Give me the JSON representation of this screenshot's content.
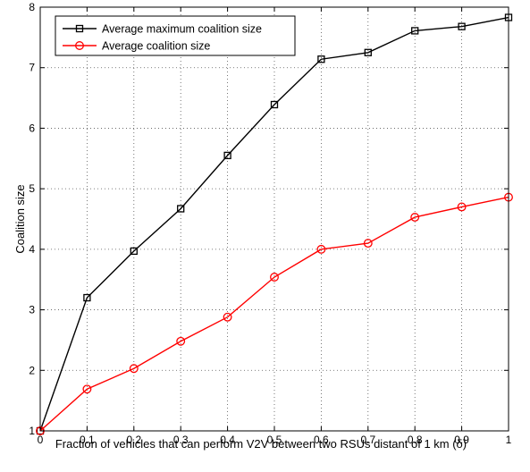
{
  "chart_data": {
    "type": "line",
    "title": "",
    "xlabel": "Fraction of vehicles that can perform V2V between two RSUs distant of 1 km (δ)",
    "ylabel": "Coalition size",
    "xlim": [
      0,
      1
    ],
    "ylim": [
      1,
      8
    ],
    "x_ticks": [
      0,
      0.1,
      0.2,
      0.3,
      0.4,
      0.5,
      0.6,
      0.7,
      0.8,
      0.9,
      1
    ],
    "x_tick_labels": [
      "0",
      "0.1",
      "0.2",
      "0.3",
      "0.4",
      "0.5",
      "0.6",
      "0.7",
      "0.8",
      "0.9",
      "1"
    ],
    "y_ticks": [
      1,
      2,
      3,
      4,
      5,
      6,
      7,
      8
    ],
    "y_tick_labels": [
      "1",
      "2",
      "3",
      "4",
      "5",
      "6",
      "7",
      "8"
    ],
    "grid": true,
    "legend_position": "top-left",
    "x": [
      0,
      0.1,
      0.2,
      0.3,
      0.4,
      0.5,
      0.6,
      0.7,
      0.8,
      0.9,
      1
    ],
    "series": [
      {
        "name": "Average maximum coalition size",
        "color": "#000000",
        "marker": "square",
        "values": [
          1.0,
          3.2,
          3.97,
          4.67,
          5.55,
          6.39,
          7.14,
          7.25,
          7.61,
          7.68,
          7.83
        ]
      },
      {
        "name": "Average coalition size",
        "color": "#ff0000",
        "marker": "circle",
        "values": [
          1.0,
          1.69,
          2.03,
          2.48,
          2.88,
          3.54,
          4.0,
          4.1,
          4.53,
          4.7,
          4.86
        ]
      }
    ]
  }
}
